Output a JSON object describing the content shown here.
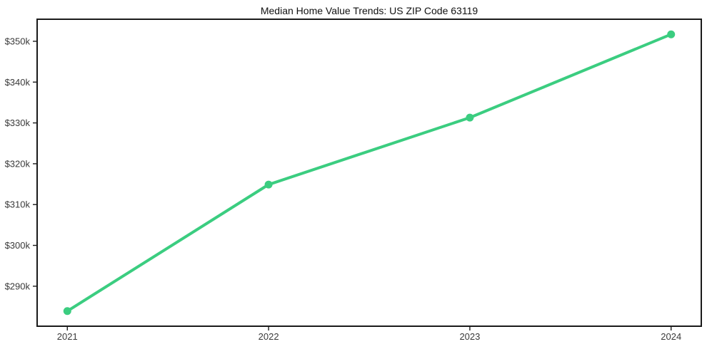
{
  "figure": {
    "background": "#ffffff"
  },
  "chart_data": {
    "type": "line",
    "title": "Median Home Value Trends: US ZIP Code 63119",
    "xlabel": "",
    "ylabel": "",
    "x": [
      2021,
      2022,
      2023,
      2024
    ],
    "x_tick_labels": [
      "2021",
      "2022",
      "2023",
      "2024"
    ],
    "series": [
      {
        "name": "Median Home Value",
        "values": [
          283900,
          314900,
          331300,
          351700
        ],
        "color": "#3bcd80",
        "marker": "circle",
        "line_width": 4,
        "marker_radius": 5.5
      }
    ],
    "y_ticks": [
      290000,
      300000,
      310000,
      320000,
      330000,
      340000,
      350000
    ],
    "y_tick_labels": [
      "$290k",
      "$300k",
      "$310k",
      "$320k",
      "$330k",
      "$340k",
      "$350k"
    ],
    "ylim": [
      280200,
      355400
    ],
    "xlim": [
      2020.85,
      2024.15
    ],
    "grid": false,
    "legend": "none",
    "axis_color": "#1a1a1a",
    "tick_label_color": "#3a3a3a",
    "title_color": "#111111"
  }
}
